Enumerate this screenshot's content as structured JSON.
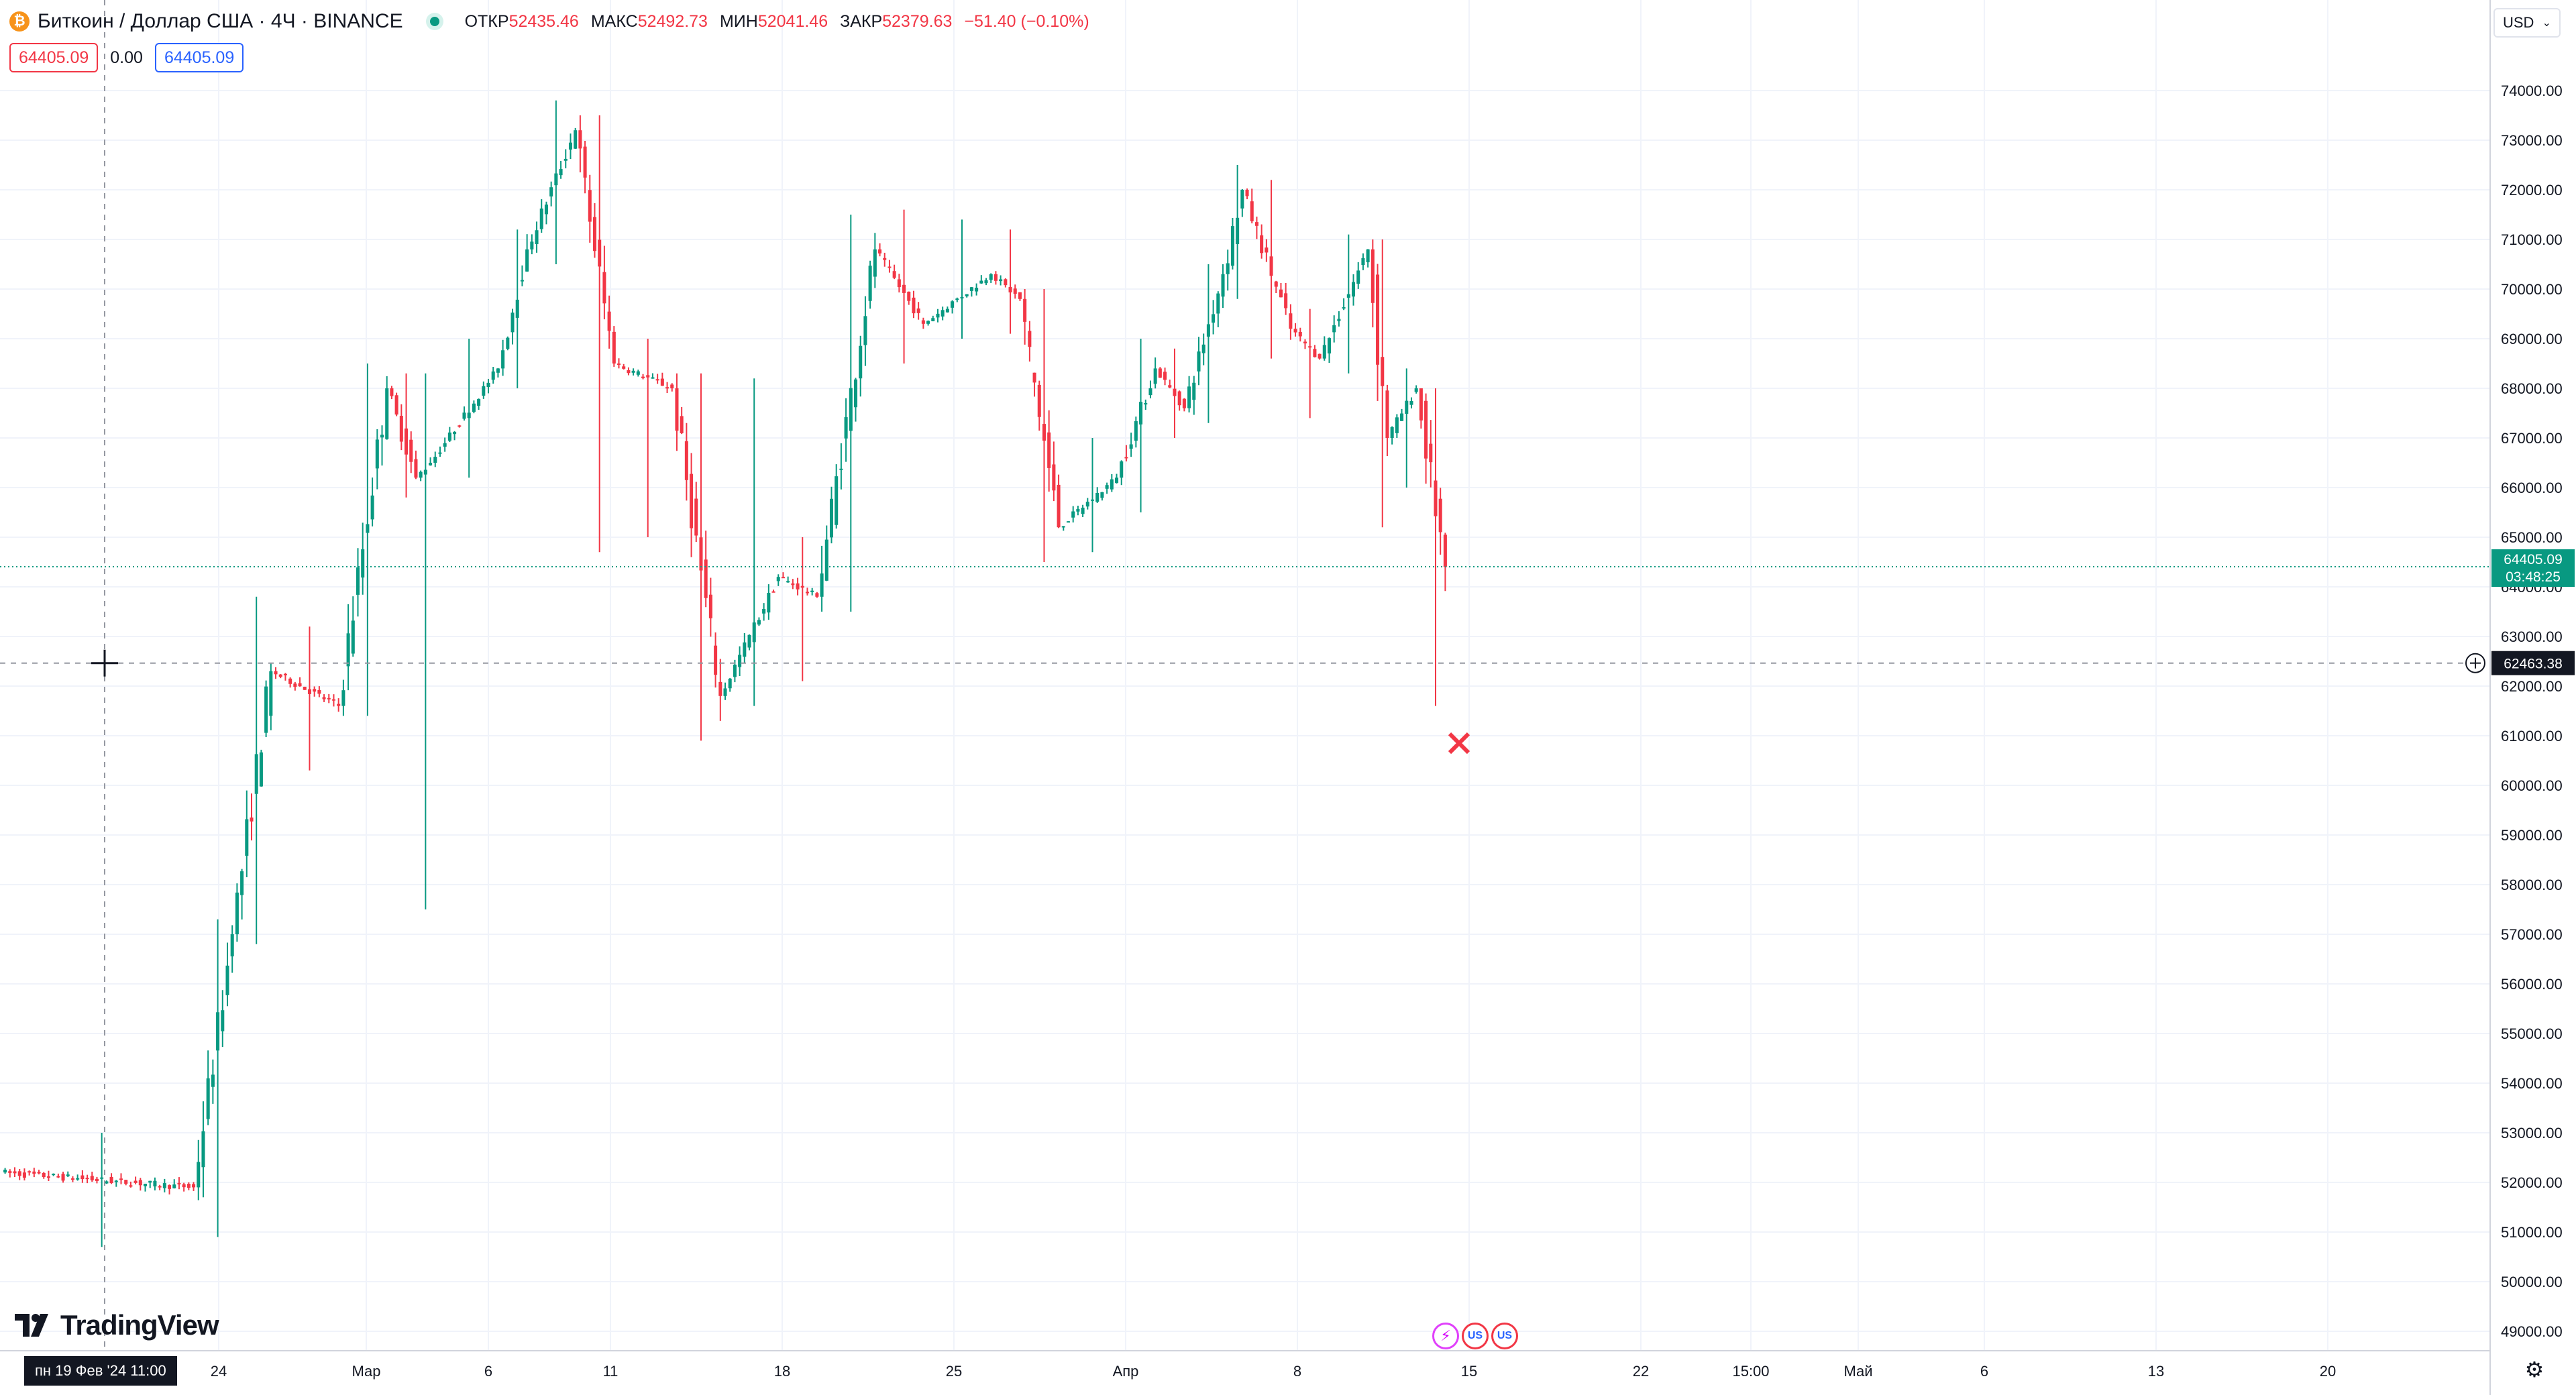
{
  "header": {
    "symbol_title": "Биткоин / Доллар США · 4Ч · BINANCE",
    "ohlc": {
      "open_label": "ОТКР",
      "open": "52435.46",
      "high_label": "МАКС",
      "high": "52492.73",
      "low_label": "МИН",
      "low": "52041.46",
      "close_label": "ЗАКР",
      "close": "52379.63",
      "change": "−51.40 (−0.10%)"
    }
  },
  "trade": {
    "sell_price": "64405.09",
    "spread": "0.00",
    "buy_price": "64405.09"
  },
  "currency_selector": {
    "value": "USD"
  },
  "crosshair": {
    "date_label": "пн 19 Фев '24   11:00",
    "price_label": "62463.38",
    "price": 62463.38
  },
  "last_price": {
    "price_label": "64405.09",
    "countdown": "03:48:25",
    "price": 64405.09
  },
  "logo": {
    "text": "TradingView"
  },
  "colors": {
    "up": "#089981",
    "down": "#f23645",
    "grid": "#f0f3fa",
    "axis_text": "#131722"
  },
  "chart_data": {
    "type": "candlestick",
    "ylim": [
      48500,
      75500
    ],
    "y_ticks": [
      "49000.00",
      "50000.00",
      "51000.00",
      "52000.00",
      "53000.00",
      "54000.00",
      "55000.00",
      "56000.00",
      "57000.00",
      "58000.00",
      "59000.00",
      "60000.00",
      "61000.00",
      "62000.00",
      "63000.00",
      "64000.00",
      "65000.00",
      "66000.00",
      "67000.00",
      "68000.00",
      "69000.00",
      "70000.00",
      "71000.00",
      "72000.00",
      "73000.00",
      "74000.00"
    ],
    "x_ticks": [
      "24",
      "Мар",
      "6",
      "11",
      "18",
      "25",
      "Апр",
      "8",
      "15",
      "22",
      "15:00",
      "Май",
      "6",
      "13",
      "20"
    ],
    "segments": [
      {
        "start": 52200,
        "end": 51900,
        "low": 50700,
        "high": 53000,
        "bars": 40
      },
      {
        "start": 51900,
        "end": 57000,
        "low": 50900,
        "high": 57300,
        "bars": 8
      },
      {
        "start": 57000,
        "end": 62300,
        "low": 56800,
        "high": 63800,
        "bars": 8
      },
      {
        "start": 62300,
        "end": 61600,
        "low": 60300,
        "high": 63200,
        "bars": 14
      },
      {
        "start": 61600,
        "end": 68000,
        "low": 61400,
        "high": 68500,
        "bars": 10
      },
      {
        "start": 68000,
        "end": 66200,
        "low": 65800,
        "high": 68300,
        "bars": 6
      },
      {
        "start": 66200,
        "end": 66500,
        "low": 57500,
        "high": 68300,
        "bars": 3
      },
      {
        "start": 66500,
        "end": 68400,
        "low": 66200,
        "high": 69000,
        "bars": 14
      },
      {
        "start": 68400,
        "end": 70800,
        "low": 68000,
        "high": 71200,
        "bars": 6
      },
      {
        "start": 70800,
        "end": 73200,
        "low": 70500,
        "high": 73800,
        "bars": 10
      },
      {
        "start": 73200,
        "end": 68500,
        "low": 64700,
        "high": 73500,
        "bars": 8
      },
      {
        "start": 68500,
        "end": 68000,
        "low": 65000,
        "high": 69000,
        "bars": 12
      },
      {
        "start": 68000,
        "end": 61800,
        "low": 60900,
        "high": 68300,
        "bars": 10
      },
      {
        "start": 61800,
        "end": 64200,
        "low": 61600,
        "high": 68200,
        "bars": 12
      },
      {
        "start": 64200,
        "end": 63800,
        "low": 62100,
        "high": 65000,
        "bars": 8
      },
      {
        "start": 63800,
        "end": 70800,
        "low": 63500,
        "high": 71500,
        "bars": 12
      },
      {
        "start": 70800,
        "end": 69300,
        "low": 68500,
        "high": 71600,
        "bars": 10
      },
      {
        "start": 69300,
        "end": 70300,
        "low": 69000,
        "high": 71400,
        "bars": 14
      },
      {
        "start": 70300,
        "end": 69800,
        "low": 69100,
        "high": 71200,
        "bars": 6
      },
      {
        "start": 69800,
        "end": 65200,
        "low": 64500,
        "high": 70000,
        "bars": 8
      },
      {
        "start": 65200,
        "end": 66200,
        "low": 64700,
        "high": 67000,
        "bars": 12
      },
      {
        "start": 66200,
        "end": 68400,
        "low": 65500,
        "high": 69000,
        "bars": 8
      },
      {
        "start": 68400,
        "end": 67600,
        "low": 67000,
        "high": 68800,
        "bars": 6
      },
      {
        "start": 67600,
        "end": 70300,
        "low": 67300,
        "high": 70500,
        "bars": 8
      },
      {
        "start": 70300,
        "end": 72000,
        "low": 69800,
        "high": 72500,
        "bars": 4
      },
      {
        "start": 72000,
        "end": 69200,
        "low": 68600,
        "high": 72200,
        "bars": 10
      },
      {
        "start": 69200,
        "end": 68600,
        "low": 67400,
        "high": 69600,
        "bars": 6
      },
      {
        "start": 68600,
        "end": 70800,
        "low": 68300,
        "high": 71100,
        "bars": 10
      },
      {
        "start": 70800,
        "end": 67000,
        "low": 65200,
        "high": 71000,
        "bars": 4
      },
      {
        "start": 67000,
        "end": 68000,
        "low": 66000,
        "high": 68400,
        "bars": 6
      },
      {
        "start": 68000,
        "end": 64400,
        "low": 61600,
        "high": 68000,
        "bars": 6
      }
    ]
  }
}
